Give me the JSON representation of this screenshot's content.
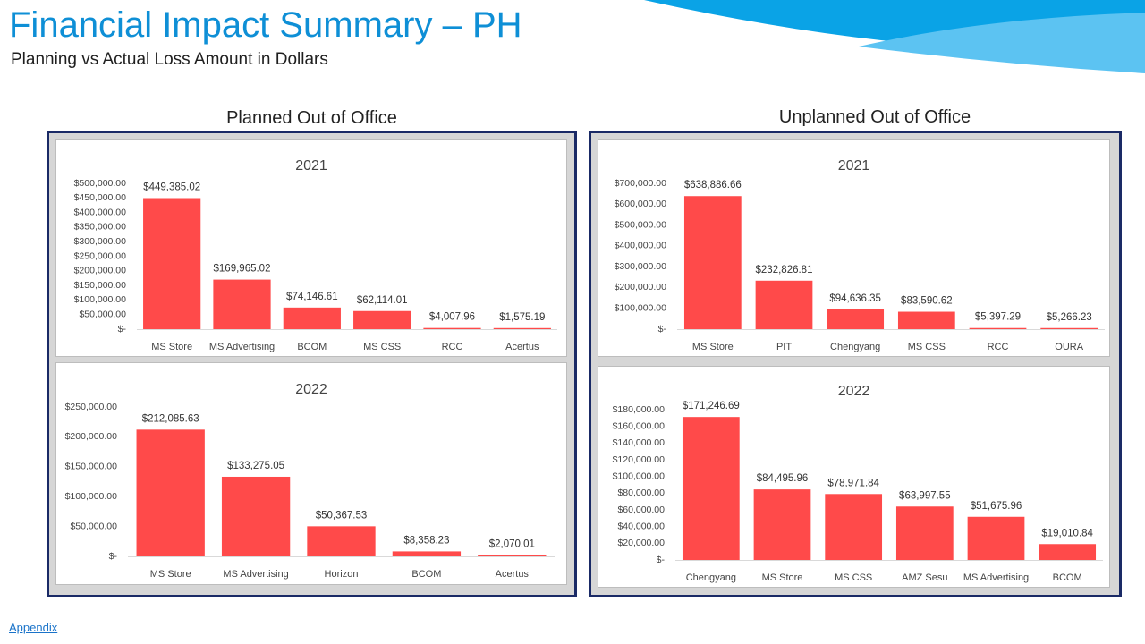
{
  "header": {
    "title": "Financial Impact Summary – PH",
    "subtitle": "Planning vs Actual Loss Amount in Dollars"
  },
  "sections": {
    "planned": {
      "title": "Planned Out of Office"
    },
    "unplanned": {
      "title": "Unplanned Out of Office"
    }
  },
  "footer": {
    "appendix_link": "Appendix"
  },
  "colors": {
    "bar": "#ff4a4a",
    "panel_border": "#1a2a66",
    "title": "#0e8fd6"
  },
  "chart_data": [
    {
      "id": "planned-2021",
      "type": "bar",
      "title": "2021",
      "categories": [
        "MS Store",
        "MS Advertising",
        "BCOM",
        "MS CSS",
        "RCC",
        "Acertus"
      ],
      "values": [
        449385.02,
        169965.02,
        74146.61,
        62114.01,
        4007.96,
        1575.19
      ],
      "data_labels": [
        "$449,385.02",
        "$169,965.02",
        "$74,146.61",
        "$62,114.01",
        "$4,007.96",
        "$1,575.19"
      ],
      "ylim": [
        0,
        500000
      ],
      "yticks": [
        0,
        50000,
        100000,
        150000,
        200000,
        250000,
        300000,
        350000,
        400000,
        450000,
        500000
      ],
      "ytick_labels": [
        "$-",
        "$50,000.00",
        "$100,000.00",
        "$150,000.00",
        "$200,000.00",
        "$250,000.00",
        "$300,000.00",
        "$350,000.00",
        "$400,000.00",
        "$450,000.00",
        "$500,000.00"
      ],
      "grid": false,
      "legend": "none"
    },
    {
      "id": "planned-2022",
      "type": "bar",
      "title": "2022",
      "categories": [
        "MS Store",
        "MS Advertising",
        "Horizon",
        "BCOM",
        "Acertus"
      ],
      "values": [
        212085.63,
        133275.05,
        50367.53,
        8358.23,
        2070.01
      ],
      "data_labels": [
        "$212,085.63",
        "$133,275.05",
        "$50,367.53",
        "$8,358.23",
        "$2,070.01"
      ],
      "ylim": [
        0,
        250000
      ],
      "yticks": [
        0,
        50000,
        100000,
        150000,
        200000,
        250000
      ],
      "ytick_labels": [
        "$-",
        "$50,000.00",
        "$100,000.00",
        "$150,000.00",
        "$200,000.00",
        "$250,000.00"
      ],
      "grid": false,
      "legend": "none"
    },
    {
      "id": "unplanned-2021",
      "type": "bar",
      "title": "2021",
      "categories": [
        "MS Store",
        "PIT",
        "Chengyang",
        "MS CSS",
        "RCC",
        "OURA"
      ],
      "values": [
        638886.66,
        232826.81,
        94636.35,
        83590.62,
        5397.29,
        5266.23
      ],
      "data_labels": [
        "$638,886.66",
        "$232,826.81",
        "$94,636.35",
        "$83,590.62",
        "$5,397.29",
        "$5,266.23"
      ],
      "ylim": [
        0,
        700000
      ],
      "yticks": [
        0,
        100000,
        200000,
        300000,
        400000,
        500000,
        600000,
        700000
      ],
      "ytick_labels": [
        "$-",
        "$100,000.00",
        "$200,000.00",
        "$300,000.00",
        "$400,000.00",
        "$500,000.00",
        "$600,000.00",
        "$700,000.00"
      ],
      "grid": false,
      "legend": "none"
    },
    {
      "id": "unplanned-2022",
      "type": "bar",
      "title": "2022",
      "categories": [
        "Chengyang",
        "MS Store",
        "MS CSS",
        "AMZ Sesu",
        "MS Advertising",
        "BCOM"
      ],
      "values": [
        171246.69,
        84495.96,
        78971.84,
        63997.55,
        51675.96,
        19010.84
      ],
      "data_labels": [
        "$171,246.69",
        "$84,495.96",
        "$78,971.84",
        "$63,997.55",
        "$51,675.96",
        "$19,010.84"
      ],
      "ylim": [
        0,
        180000
      ],
      "yticks": [
        0,
        20000,
        40000,
        60000,
        80000,
        100000,
        120000,
        140000,
        160000,
        180000
      ],
      "ytick_labels": [
        "$-",
        "$20,000.00",
        "$40,000.00",
        "$60,000.00",
        "$80,000.00",
        "$100,000.00",
        "$120,000.00",
        "$140,000.00",
        "$160,000.00",
        "$180,000.00"
      ],
      "grid": false,
      "legend": "none"
    }
  ]
}
